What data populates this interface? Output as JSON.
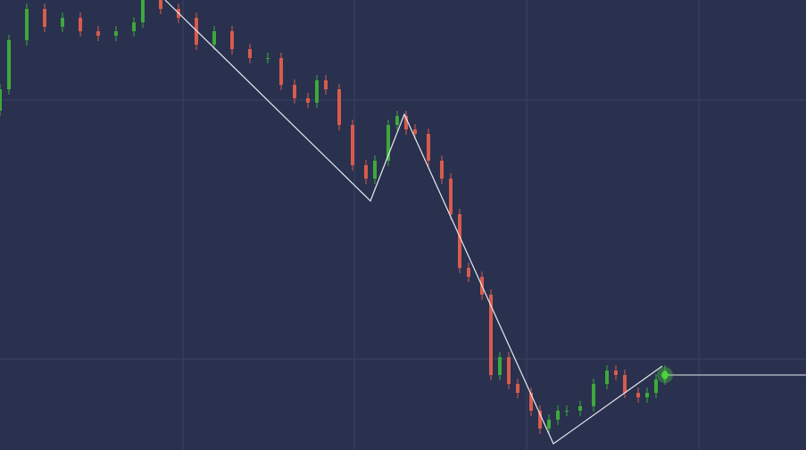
{
  "chart_data": {
    "type": "candlestick",
    "up_color": "#3fa83a",
    "down_color": "#d95b4c",
    "grid": true,
    "grid_color": "#3a4263",
    "xlim": [
      0,
      903
    ],
    "ylim": [
      0,
      504
    ],
    "xticks": [
      205,
      397,
      590,
      783
    ],
    "yticks": [
      102,
      392
    ],
    "x": [
      0,
      10,
      30,
      50,
      70,
      90,
      110,
      130,
      150,
      160,
      180,
      200,
      220,
      240,
      260,
      280,
      300,
      315,
      330,
      345,
      355,
      365,
      380,
      395,
      410,
      420,
      435,
      445,
      455,
      465,
      480,
      495,
      505,
      515,
      525,
      540,
      550,
      560,
      570,
      580,
      595,
      605,
      615,
      625,
      635,
      650,
      665,
      680,
      690,
      700,
      715,
      725,
      735,
      745
    ],
    "open": [
      380,
      404,
      459,
      494,
      474,
      484,
      469,
      464,
      469,
      479,
      504,
      494,
      484,
      454,
      469,
      449,
      439,
      439,
      409,
      394,
      389,
      414,
      404,
      364,
      319,
      304,
      324,
      364,
      374,
      359,
      354,
      324,
      304,
      264,
      204,
      194,
      174,
      84,
      104,
      74,
      64,
      44,
      24,
      34,
      44,
      44,
      49,
      74,
      89,
      84,
      64,
      59,
      64,
      79
    ],
    "high": [
      410,
      465,
      500,
      500,
      490,
      490,
      475,
      475,
      485,
      510,
      510,
      500,
      490,
      475,
      475,
      455,
      445,
      445,
      415,
      400,
      420,
      420,
      410,
      370,
      325,
      330,
      370,
      380,
      380,
      365,
      360,
      330,
      310,
      270,
      210,
      200,
      180,
      110,
      110,
      80,
      70,
      50,
      40,
      50,
      50,
      55,
      80,
      95,
      95,
      90,
      70,
      70,
      85,
      95
    ],
    "low": [
      374,
      398,
      453,
      468,
      468,
      463,
      458,
      458,
      463,
      473,
      488,
      478,
      448,
      448,
      443,
      433,
      433,
      403,
      388,
      383,
      383,
      398,
      358,
      313,
      298,
      298,
      318,
      358,
      353,
      348,
      318,
      298,
      258,
      198,
      188,
      168,
      78,
      78,
      68,
      58,
      38,
      18,
      18,
      28,
      38,
      38,
      43,
      68,
      78,
      58,
      53,
      53,
      58,
      73
    ],
    "close": [
      404,
      459,
      494,
      474,
      484,
      469,
      464,
      469,
      479,
      504,
      494,
      484,
      454,
      469,
      449,
      439,
      439,
      409,
      394,
      389,
      414,
      404,
      364,
      319,
      304,
      324,
      364,
      374,
      359,
      354,
      324,
      304,
      264,
      204,
      194,
      174,
      84,
      104,
      74,
      64,
      44,
      24,
      34,
      44,
      44,
      49,
      74,
      89,
      84,
      64,
      59,
      64,
      79,
      89
    ],
    "trend": {
      "color": "#e8e8ee",
      "x": [
        185,
        415,
        453,
        620,
        742
      ],
      "values": [
        504,
        279,
        376,
        7,
        94
      ]
    },
    "price_line": {
      "color": "#e8e8ee",
      "value": 84,
      "marker_color": "#4cd43c"
    }
  }
}
